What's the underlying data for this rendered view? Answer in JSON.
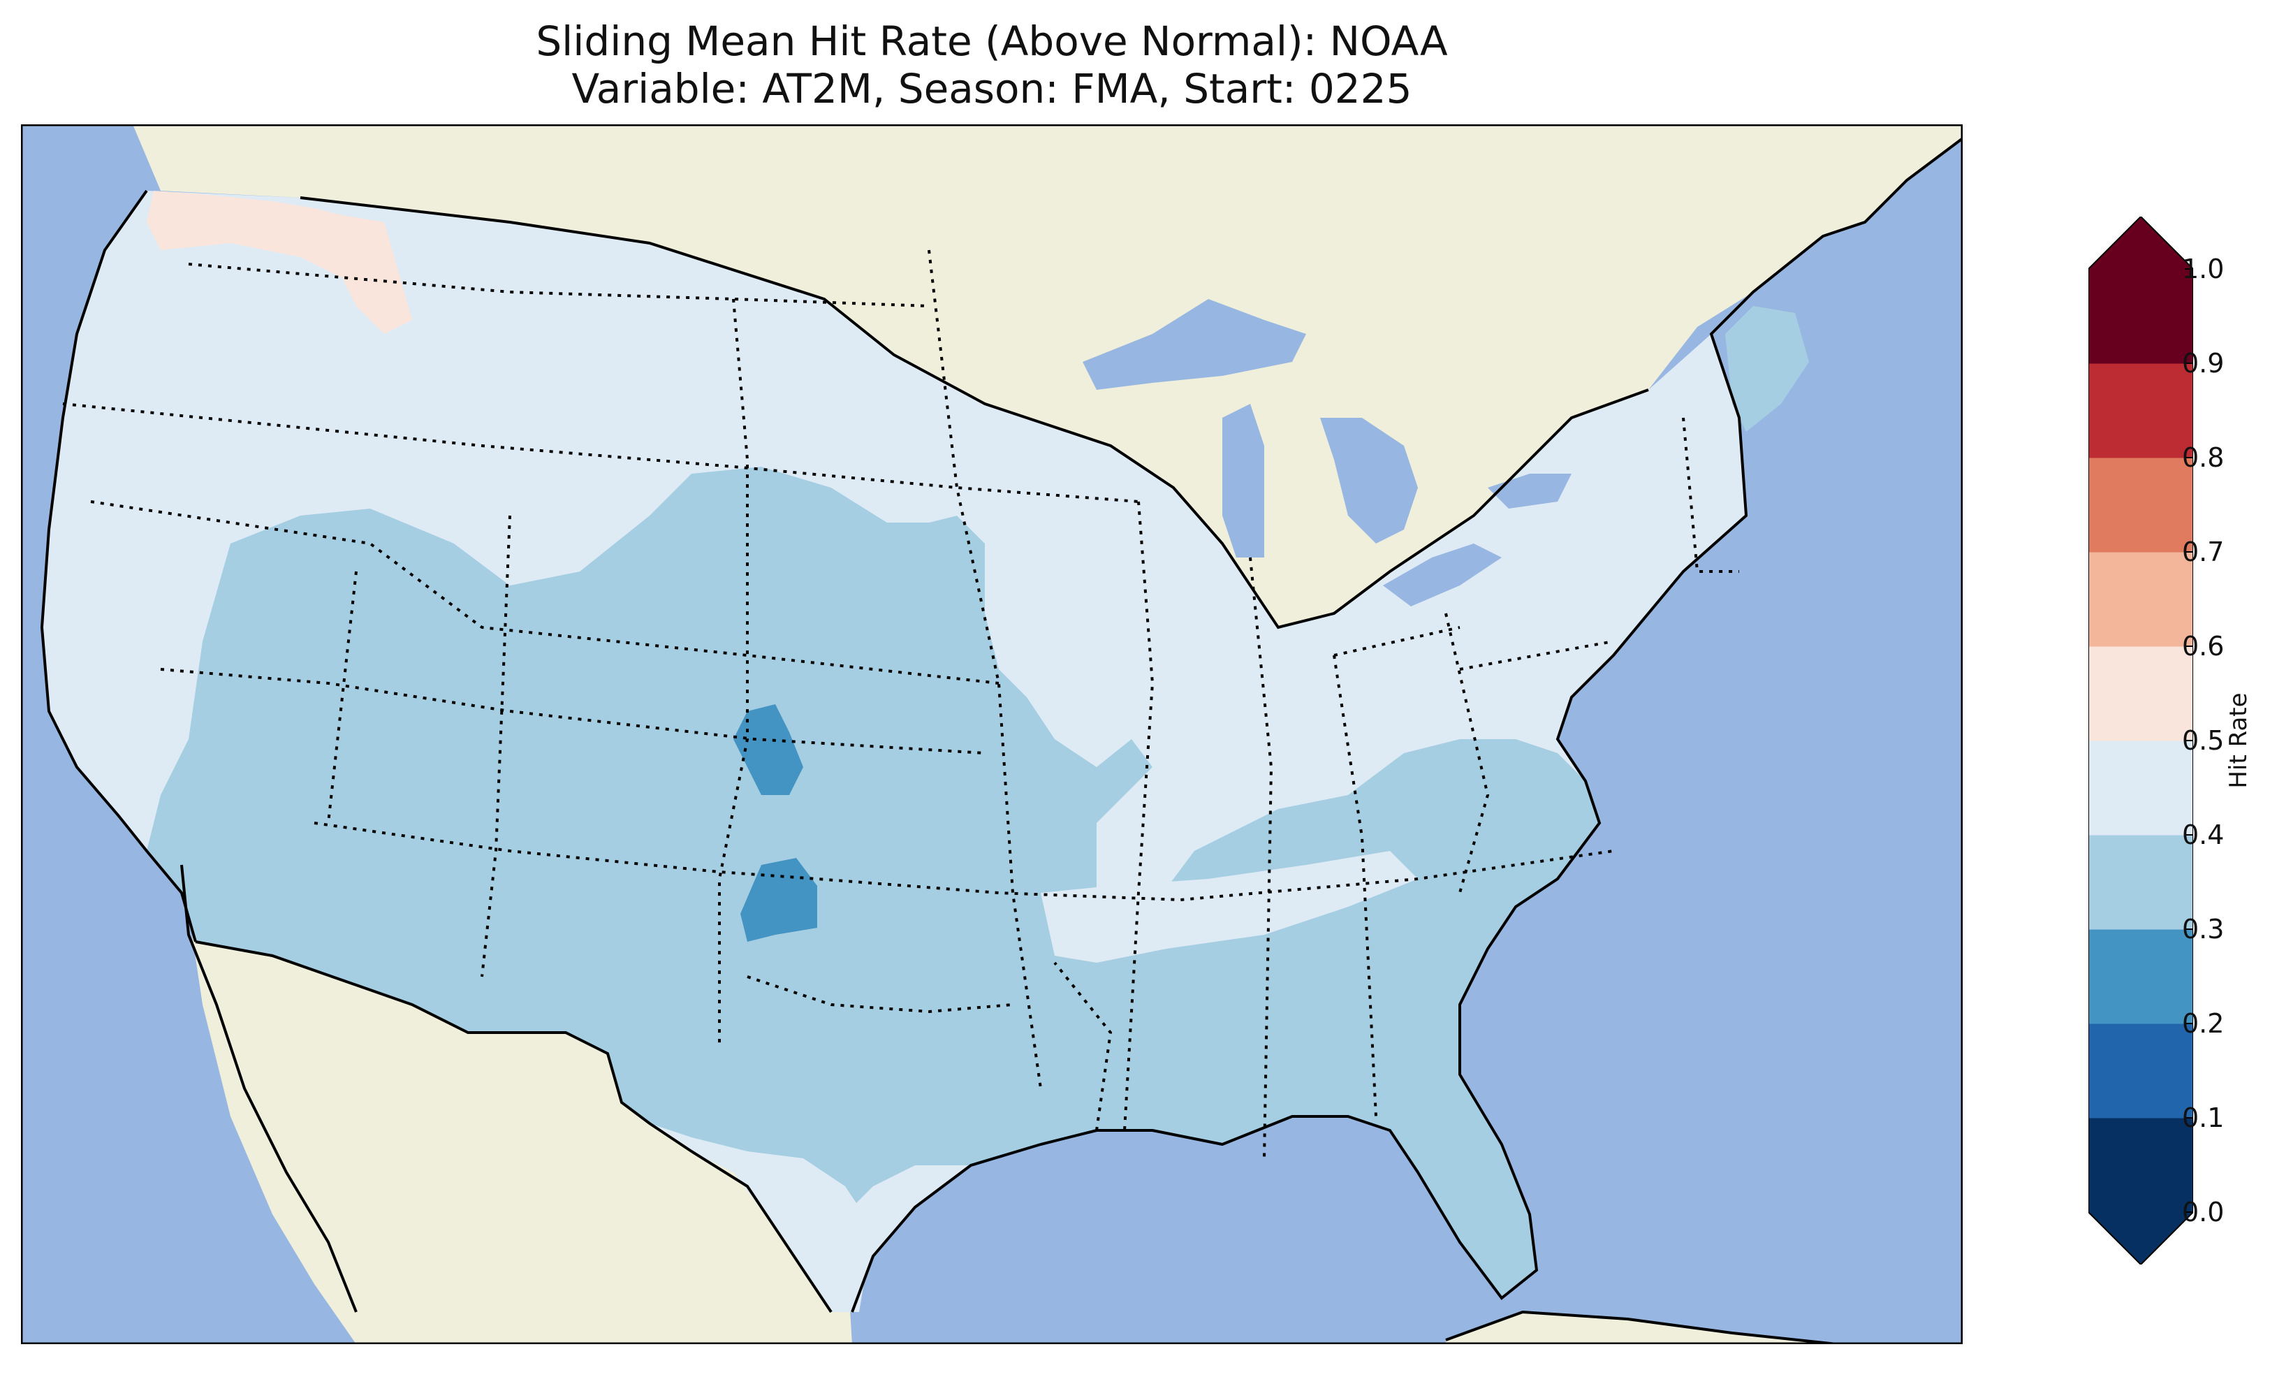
{
  "title": {
    "line1": "Sliding Mean Hit Rate (Above Normal): NOAA",
    "line2": "Variable: AT2M, Season: FMA, Start: 0225"
  },
  "map": {
    "region": "Contiguous United States",
    "colors": {
      "ocean": "#97b6e1",
      "land": "#efefdb",
      "borders": "#000000"
    }
  },
  "colorbar": {
    "label": "Hit Rate",
    "ticks": [
      "0.0",
      "0.1",
      "0.2",
      "0.3",
      "0.4",
      "0.5",
      "0.6",
      "0.7",
      "0.8",
      "0.9",
      "1.0"
    ],
    "colors": [
      "#053061",
      "#2166ac",
      "#4393c3",
      "#a6cee3",
      "#deebf5",
      "#f9e5db",
      "#f4b69a",
      "#e07b5f",
      "#bd2b33",
      "#67001f"
    ],
    "extend": "both"
  },
  "legend_values": {
    "dominant_west_north": "0.4-0.5",
    "southwest_south_southeast": "0.3-0.4",
    "pacific_northwest_patch": "0.5-0.6",
    "colorado_plains_patches": "0.2-0.3"
  }
}
